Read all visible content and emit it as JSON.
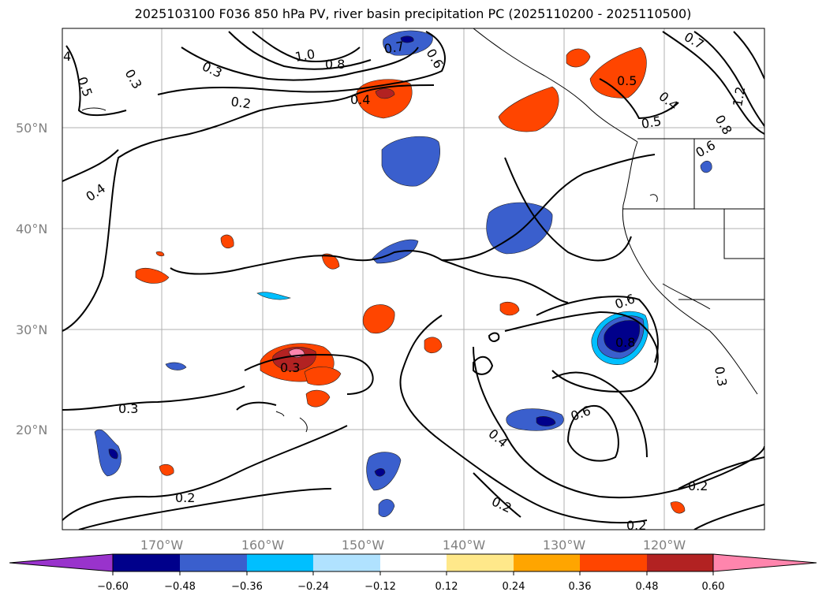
{
  "title": "2025103100 F036 850 hPa PV, river basin precipitation PC (2025110200 - 2025110500)",
  "map": {
    "lat_labels": [
      "50°N",
      "40°N",
      "30°N",
      "20°N"
    ],
    "lon_labels": [
      "170°W",
      "160°W",
      "150°W",
      "140°W",
      "130°W",
      "120°W"
    ],
    "contour_labels": [
      "4",
      "0.3",
      "0.5",
      "1.0",
      "0.3",
      "0.8",
      "0.4",
      "0.2",
      "0.7",
      "0.6",
      "0.7",
      "0.5",
      "0.4",
      "0.8",
      "1.2",
      "0.5",
      "0.6",
      "0.4",
      "0.6",
      "0.8",
      "0.3",
      "0.3",
      "0.6",
      "0.4",
      "0.2",
      "0.2",
      "0.2",
      "0.2"
    ]
  },
  "colorbar": {
    "labels": [
      "−0.60",
      "−0.48",
      "−0.36",
      "−0.24",
      "−0.12",
      "0.12",
      "0.24",
      "0.36",
      "0.48",
      "0.60"
    ],
    "colors": [
      "#9933cc",
      "#00008b",
      "#3a5fcd",
      "#00bfff",
      "#b0e2ff",
      "#ffffff",
      "#ffe88a",
      "#ffa500",
      "#ff4500",
      "#b22222",
      "#ff85ad",
      "#ff85ad"
    ]
  },
  "colors": {
    "blue_dark": "#00008b",
    "blue_mid": "#3a5fcd",
    "blue_light": "#00bfff",
    "orange_light": "#ffa500",
    "orange": "#ff4500",
    "red": "#b22222",
    "pink": "#ff85ad"
  }
}
